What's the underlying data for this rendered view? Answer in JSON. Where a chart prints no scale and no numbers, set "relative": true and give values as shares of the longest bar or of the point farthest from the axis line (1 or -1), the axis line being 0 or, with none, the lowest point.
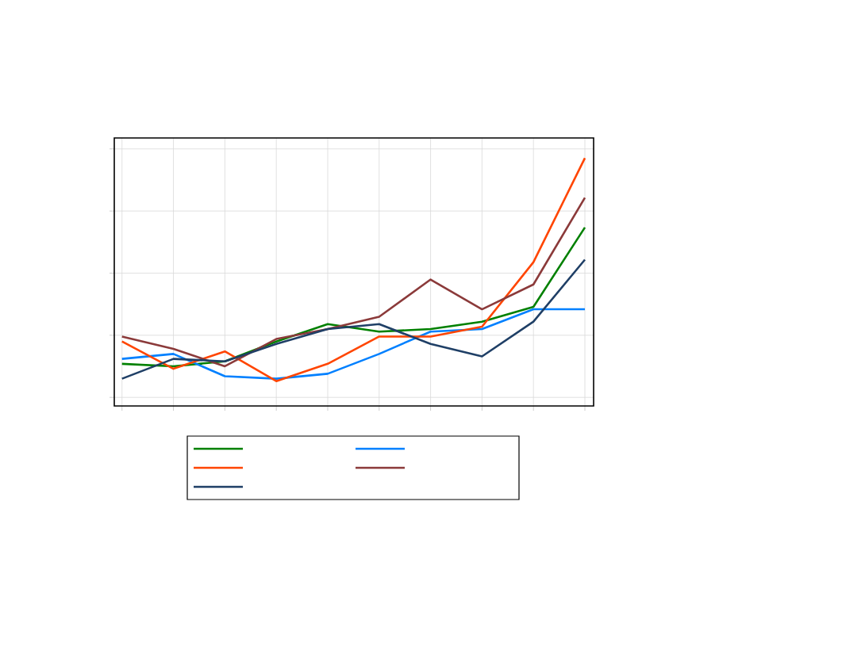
{
  "chart_data": {
    "type": "line",
    "relative": true,
    "grid": true,
    "marker": "none",
    "line_style": "solid",
    "categories": [
      null,
      null,
      null,
      null,
      null,
      null,
      null,
      null,
      null,
      null
    ],
    "series": [
      {
        "color": "#008000",
        "values": [
          0.17,
          0.16,
          0.18,
          0.26,
          0.33,
          0.3,
          0.31,
          0.34,
          0.4,
          0.72
        ]
      },
      {
        "color": "#0080ff",
        "values": [
          0.19,
          0.21,
          0.12,
          0.11,
          0.13,
          0.21,
          0.3,
          0.31,
          0.39,
          0.39
        ]
      },
      {
        "color": "#ff4500",
        "values": [
          0.26,
          0.15,
          0.22,
          0.1,
          0.17,
          0.28,
          0.28,
          0.32,
          0.58,
          1
        ]
      },
      {
        "color": "#8b3a3a",
        "values": [
          0.28,
          0.23,
          0.16,
          0.27,
          0.31,
          0.36,
          0.51,
          0.39,
          0.49,
          0.84
        ]
      },
      {
        "color": "#1f3f66",
        "values": [
          0.11,
          0.19,
          0.18,
          0.25,
          0.31,
          0.33,
          0.25,
          0.2,
          0.34,
          0.59
        ]
      }
    ]
  }
}
